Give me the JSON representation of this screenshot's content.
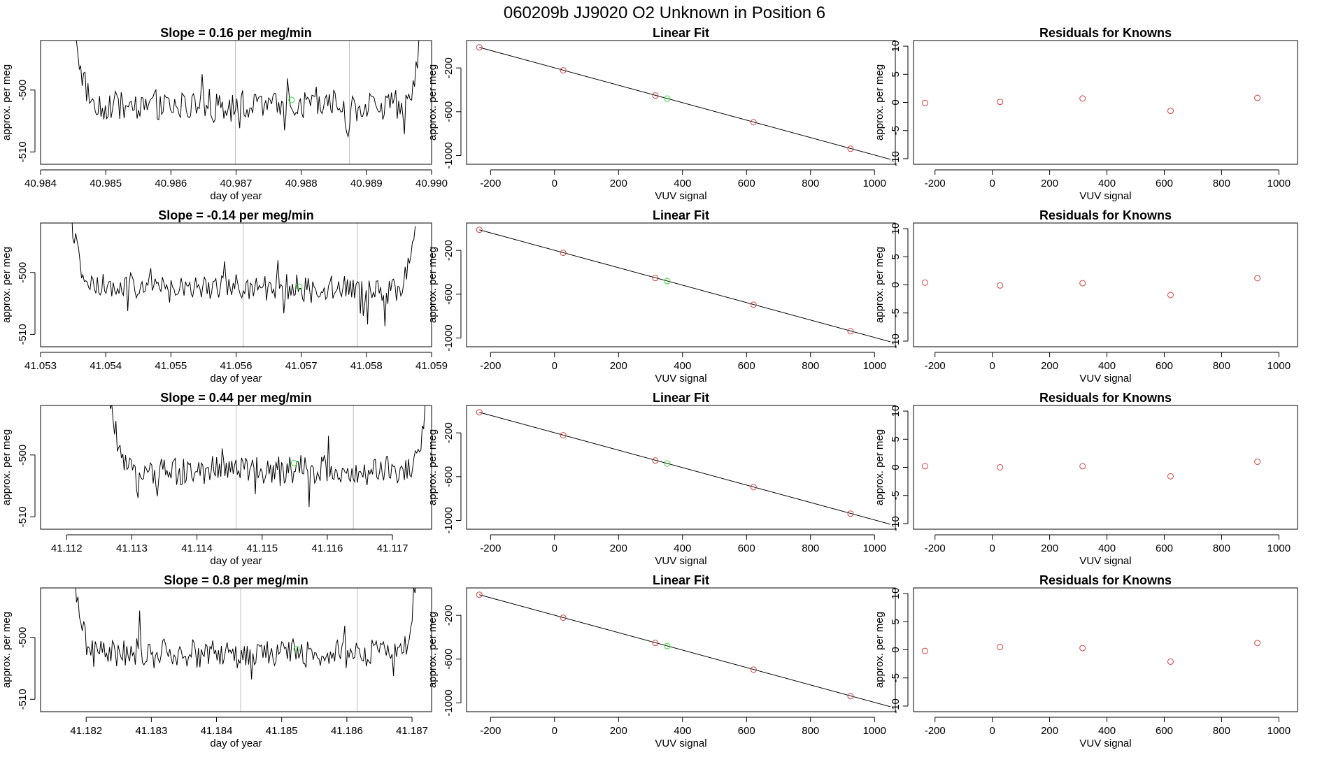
{
  "suptitle": "060209b      JJ9020    O2 Unknown in Position  6",
  "rows": [
    {
      "ts": {
        "title": "Slope =  0.16  per meg/min",
        "xlabel": "day of year",
        "ylabel": "approx. per meg",
        "xlim": [
          40.984,
          40.99
        ],
        "ylim": [
          -512,
          -492
        ],
        "xticks": [
          40.984,
          40.985,
          40.986,
          40.987,
          40.988,
          40.989,
          40.99
        ],
        "xtick_labels": [
          "40.984",
          "40.985",
          "40.986",
          "40.987",
          "40.988",
          "40.989",
          "40.990"
        ],
        "yticks": [
          -500,
          -510
        ],
        "ytick_labels": [
          "-500",
          "-510"
        ],
        "vlines": [
          40.98699,
          40.98874
        ],
        "x_start": 40.98455,
        "x_end": 40.98985,
        "n": 240,
        "base": -502.5,
        "amp": 2.2,
        "dip_at": 40.98872,
        "dip_depth": -4,
        "edge_left_rise": 10,
        "edge_right_rise": 14,
        "green_point": {
          "x": 40.98785,
          "y": -501.6
        }
      },
      "fit": {
        "title": "Linear Fit",
        "xlabel": "VUV signal",
        "ylabel": "approx. per meg",
        "xlim": [
          -275,
          1065
        ],
        "ylim": [
          -1080,
          50
        ],
        "xticks": [
          -200,
          0,
          200,
          400,
          600,
          800,
          1000
        ],
        "xtick_labels": [
          "-200",
          "0",
          "200",
          "400",
          "600",
          "800",
          "1000"
        ],
        "yticks": [
          -200,
          -600,
          -1000
        ],
        "ytick_labels": [
          "-200",
          "-600",
          "-1000"
        ],
        "line": [
          [
            -235,
            -12
          ],
          [
            1050,
            -1035
          ]
        ],
        "knowns": [
          [
            -235,
            -12
          ],
          [
            27,
            -222
          ],
          [
            315,
            -452
          ],
          [
            622,
            -696
          ],
          [
            925,
            -938
          ]
        ],
        "unknown": [
          352,
          -480
        ]
      },
      "res": {
        "title": "Residuals for Knowns",
        "xlabel": "VUV signal",
        "ylabel": "approx. per meg",
        "xlim": [
          -275,
          1065
        ],
        "ylim": [
          -11,
          11
        ],
        "xticks": [
          -200,
          0,
          200,
          400,
          600,
          800,
          1000
        ],
        "xtick_labels": [
          "-200",
          "0",
          "200",
          "400",
          "600",
          "800",
          "1000"
        ],
        "yticks": [
          10,
          5,
          0,
          -5,
          -10
        ],
        "ytick_labels": [
          "10",
          "5",
          "0",
          "-5",
          "-10"
        ],
        "points": [
          [
            -235,
            -0.1
          ],
          [
            27,
            0.1
          ],
          [
            315,
            0.7
          ],
          [
            622,
            -1.5
          ],
          [
            925,
            0.8
          ]
        ]
      }
    },
    {
      "ts": {
        "title": "Slope =  -0.14  per meg/min",
        "xlabel": "day of year",
        "ylabel": "approx. per meg",
        "xlim": [
          41.053,
          41.059
        ],
        "ylim": [
          -512,
          -492
        ],
        "xticks": [
          41.053,
          41.054,
          41.055,
          41.056,
          41.057,
          41.058,
          41.059
        ],
        "xtick_labels": [
          "41.053",
          "41.054",
          "41.055",
          "41.056",
          "41.057",
          "41.058",
          "41.059"
        ],
        "yticks": [
          -500,
          -510
        ],
        "ytick_labels": [
          "-500",
          "-510"
        ],
        "vlines": [
          41.05611,
          41.05786
        ],
        "x_start": 41.05345,
        "x_end": 41.05875,
        "n": 240,
        "base": -502.5,
        "amp": 2.0,
        "dip_at": 41.05795,
        "dip_depth": -6,
        "edge_left_rise": 14,
        "edge_right_rise": 10,
        "green_point": {
          "x": 41.05697,
          "y": -502.3
        }
      },
      "fit": {
        "title": "Linear Fit",
        "xlabel": "VUV signal",
        "ylabel": "approx. per meg",
        "xlim": [
          -275,
          1065
        ],
        "ylim": [
          -1080,
          50
        ],
        "xticks": [
          -200,
          0,
          200,
          400,
          600,
          800,
          1000
        ],
        "xtick_labels": [
          "-200",
          "0",
          "200",
          "400",
          "600",
          "800",
          "1000"
        ],
        "yticks": [
          -200,
          -600,
          -1000
        ],
        "ytick_labels": [
          "-200",
          "-600",
          "-1000"
        ],
        "line": [
          [
            -235,
            -12
          ],
          [
            1050,
            -1035
          ]
        ],
        "knowns": [
          [
            -235,
            -12
          ],
          [
            27,
            -222
          ],
          [
            315,
            -452
          ],
          [
            622,
            -696
          ],
          [
            925,
            -938
          ]
        ],
        "unknown": [
          352,
          -480
        ]
      },
      "res": {
        "title": "Residuals for Knowns",
        "xlabel": "VUV signal",
        "ylabel": "approx. per meg",
        "xlim": [
          -275,
          1065
        ],
        "ylim": [
          -11,
          11
        ],
        "xticks": [
          -200,
          0,
          200,
          400,
          600,
          800,
          1000
        ],
        "xtick_labels": [
          "-200",
          "0",
          "200",
          "400",
          "600",
          "800",
          "1000"
        ],
        "yticks": [
          10,
          5,
          0,
          -5,
          -10
        ],
        "ytick_labels": [
          "10",
          "5",
          "0",
          "-5",
          "-10"
        ],
        "points": [
          [
            -235,
            0.4
          ],
          [
            27,
            -0.1
          ],
          [
            315,
            0.3
          ],
          [
            622,
            -1.8
          ],
          [
            925,
            1.2
          ]
        ]
      }
    },
    {
      "ts": {
        "title": "Slope =  0.44  per meg/min",
        "xlabel": "day of year",
        "ylabel": "approx. per meg",
        "xlim": [
          41.1116,
          41.1176
        ],
        "ylim": [
          -512,
          -492
        ],
        "xticks": [
          41.112,
          41.113,
          41.114,
          41.115,
          41.116,
          41.117
        ],
        "xtick_labels": [
          "41.112",
          "41.113",
          "41.114",
          "41.115",
          "41.116",
          "41.117"
        ],
        "yticks": [
          -500,
          -510
        ],
        "ytick_labels": [
          "-500",
          "-510"
        ],
        "vlines": [
          41.1146,
          41.1164
        ],
        "x_start": 41.11265,
        "x_end": 41.1175,
        "n": 230,
        "base": -502.5,
        "amp": 2.1,
        "dip_at": 0,
        "dip_depth": 0,
        "edge_left_rise": 12,
        "edge_right_rise": 9,
        "green_point": {
          "x": 41.11549,
          "y": -501.3
        }
      },
      "fit": {
        "title": "Linear Fit",
        "xlabel": "VUV signal",
        "ylabel": "approx. per meg",
        "xlim": [
          -275,
          1065
        ],
        "ylim": [
          -1080,
          50
        ],
        "xticks": [
          -200,
          0,
          200,
          400,
          600,
          800,
          1000
        ],
        "xtick_labels": [
          "-200",
          "0",
          "200",
          "400",
          "600",
          "800",
          "1000"
        ],
        "yticks": [
          -200,
          -600,
          -1000
        ],
        "ytick_labels": [
          "-200",
          "-600",
          "-1000"
        ],
        "line": [
          [
            -235,
            -12
          ],
          [
            1050,
            -1035
          ]
        ],
        "knowns": [
          [
            -235,
            -12
          ],
          [
            27,
            -222
          ],
          [
            315,
            -452
          ],
          [
            622,
            -696
          ],
          [
            925,
            -938
          ]
        ],
        "unknown": [
          352,
          -480
        ]
      },
      "res": {
        "title": "Residuals for Knowns",
        "xlabel": "VUV signal",
        "ylabel": "approx. per meg",
        "xlim": [
          -275,
          1065
        ],
        "ylim": [
          -11,
          11
        ],
        "xticks": [
          -200,
          0,
          200,
          400,
          600,
          800,
          1000
        ],
        "xtick_labels": [
          "-200",
          "0",
          "200",
          "400",
          "600",
          "800",
          "1000"
        ],
        "yticks": [
          10,
          5,
          0,
          -5,
          -10
        ],
        "ytick_labels": [
          "10",
          "5",
          "0",
          "-5",
          "-10"
        ],
        "points": [
          [
            -235,
            0.2
          ],
          [
            27,
            0.0
          ],
          [
            315,
            0.2
          ],
          [
            622,
            -1.6
          ],
          [
            925,
            1.0
          ]
        ]
      }
    },
    {
      "ts": {
        "title": "Slope =  0.8  per meg/min",
        "xlabel": "day of year",
        "ylabel": "approx. per meg",
        "xlim": [
          41.1813,
          41.1873
        ],
        "ylim": [
          -512,
          -492
        ],
        "xticks": [
          41.182,
          41.183,
          41.184,
          41.185,
          41.186,
          41.187
        ],
        "xtick_labels": [
          "41.182",
          "41.183",
          "41.184",
          "41.185",
          "41.186",
          "41.187"
        ],
        "yticks": [
          -500,
          -510
        ],
        "ytick_labels": [
          "-500",
          "-510"
        ],
        "vlines": [
          41.18437,
          41.18616
        ],
        "x_start": 41.18183,
        "x_end": 41.18709,
        "n": 240,
        "base": -502.6,
        "amp": 2.0,
        "dip_at": 0,
        "dip_depth": 0,
        "edge_left_rise": 11,
        "edge_right_rise": 15,
        "green_point": {
          "x": 41.18523,
          "y": -501.9
        }
      },
      "fit": {
        "title": "Linear Fit",
        "xlabel": "VUV signal",
        "ylabel": "approx. per meg",
        "xlim": [
          -275,
          1065
        ],
        "ylim": [
          -1080,
          50
        ],
        "xticks": [
          -200,
          0,
          200,
          400,
          600,
          800,
          1000
        ],
        "xtick_labels": [
          "-200",
          "0",
          "200",
          "400",
          "600",
          "800",
          "1000"
        ],
        "yticks": [
          -200,
          -600,
          -1000
        ],
        "ytick_labels": [
          "-200",
          "-600",
          "-1000"
        ],
        "line": [
          [
            -235,
            -12
          ],
          [
            1050,
            -1035
          ]
        ],
        "knowns": [
          [
            -235,
            -12
          ],
          [
            27,
            -222
          ],
          [
            315,
            -452
          ],
          [
            622,
            -696
          ],
          [
            925,
            -938
          ]
        ],
        "unknown": [
          352,
          -480
        ]
      },
      "res": {
        "title": "Residuals for Knowns",
        "xlabel": "VUV signal",
        "ylabel": "approx. per meg",
        "xlim": [
          -275,
          1065
        ],
        "ylim": [
          -11,
          11
        ],
        "xticks": [
          -200,
          0,
          200,
          400,
          600,
          800,
          1000
        ],
        "xtick_labels": [
          "-200",
          "0",
          "200",
          "400",
          "600",
          "800",
          "1000"
        ],
        "yticks": [
          10,
          5,
          0,
          -5,
          -10
        ],
        "ytick_labels": [
          "10",
          "5",
          "0",
          "-5",
          "-10"
        ],
        "points": [
          [
            -235,
            -0.2
          ],
          [
            27,
            0.5
          ],
          [
            315,
            0.3
          ],
          [
            622,
            -2.1
          ],
          [
            925,
            1.2
          ]
        ]
      }
    }
  ],
  "chart_data": [
    {
      "type": "line",
      "title": "Slope =  0.16  per meg/min",
      "xlabel": "day of year",
      "ylabel": "approx. per meg",
      "xlim": [
        40.984,
        40.99
      ],
      "ylim": [
        -512,
        -492
      ]
    },
    {
      "type": "scatter",
      "title": "Linear Fit",
      "xlabel": "VUV signal",
      "ylabel": "approx. per meg",
      "x": [
        -235,
        27,
        315,
        622,
        925
      ],
      "y": [
        -12,
        -222,
        -452,
        -696,
        -938
      ]
    },
    {
      "type": "scatter",
      "title": "Residuals for Knowns",
      "xlabel": "VUV signal",
      "ylabel": "approx. per meg",
      "x": [
        -235,
        27,
        315,
        622,
        925
      ],
      "y": [
        -0.1,
        0.1,
        0.7,
        -1.5,
        0.8
      ]
    },
    {
      "type": "line",
      "title": "Slope =  -0.14  per meg/min",
      "xlabel": "day of year",
      "ylabel": "approx. per meg",
      "xlim": [
        41.053,
        41.059
      ],
      "ylim": [
        -512,
        -492
      ]
    },
    {
      "type": "scatter",
      "title": "Linear Fit",
      "xlabel": "VUV signal",
      "ylabel": "approx. per meg",
      "x": [
        -235,
        27,
        315,
        622,
        925
      ],
      "y": [
        -12,
        -222,
        -452,
        -696,
        -938
      ]
    },
    {
      "type": "scatter",
      "title": "Residuals for Knowns",
      "xlabel": "VUV signal",
      "ylabel": "approx. per meg",
      "x": [
        -235,
        27,
        315,
        622,
        925
      ],
      "y": [
        0.4,
        -0.1,
        0.3,
        -1.8,
        1.2
      ]
    },
    {
      "type": "line",
      "title": "Slope =  0.44  per meg/min",
      "xlabel": "day of year",
      "ylabel": "approx. per meg",
      "xlim": [
        41.1116,
        41.1176
      ],
      "ylim": [
        -512,
        -492
      ]
    },
    {
      "type": "scatter",
      "title": "Linear Fit",
      "xlabel": "VUV signal",
      "ylabel": "approx. per meg",
      "x": [
        -235,
        27,
        315,
        622,
        925
      ],
      "y": [
        -12,
        -222,
        -452,
        -696,
        -938
      ]
    },
    {
      "type": "scatter",
      "title": "Residuals for Knowns",
      "xlabel": "VUV signal",
      "ylabel": "approx. per meg",
      "x": [
        -235,
        27,
        315,
        622,
        925
      ],
      "y": [
        0.2,
        0.0,
        0.2,
        -1.6,
        1.0
      ]
    },
    {
      "type": "line",
      "title": "Slope =  0.8  per meg/min",
      "xlabel": "day of year",
      "ylabel": "approx. per meg",
      "xlim": [
        41.1813,
        41.1873
      ],
      "ylim": [
        -512,
        -492
      ]
    },
    {
      "type": "scatter",
      "title": "Linear Fit",
      "xlabel": "VUV signal",
      "ylabel": "approx. per meg",
      "x": [
        -235,
        27,
        315,
        622,
        925
      ],
      "y": [
        -12,
        -222,
        -452,
        -696,
        -938
      ]
    },
    {
      "type": "scatter",
      "title": "Residuals for Knowns",
      "xlabel": "VUV signal",
      "ylabel": "approx. per meg",
      "x": [
        -235,
        27,
        315,
        622,
        925
      ],
      "y": [
        -0.2,
        0.5,
        0.3,
        -2.1,
        1.2
      ]
    }
  ]
}
